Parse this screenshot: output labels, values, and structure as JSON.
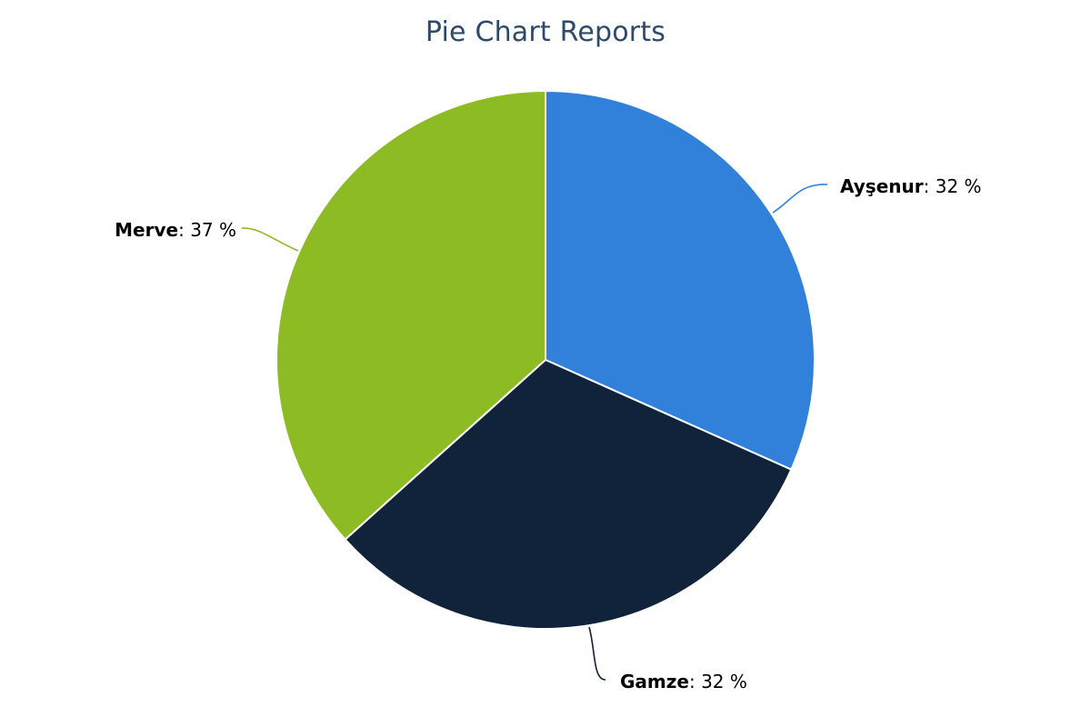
{
  "chart_data": {
    "type": "pie",
    "title": "Pie Chart Reports",
    "slices": [
      {
        "label": "Ayşenur",
        "value": 32,
        "display": ": 32 %",
        "color": "#3181db"
      },
      {
        "label": "Gamze",
        "value": 32,
        "display": ": 32 %",
        "color": "#10233b"
      },
      {
        "label": "Merve",
        "value": 37,
        "display": ": 37 %",
        "color": "#8cbb23"
      }
    ],
    "start_angle": "12 o'clock, clockwise",
    "legend": "none"
  }
}
